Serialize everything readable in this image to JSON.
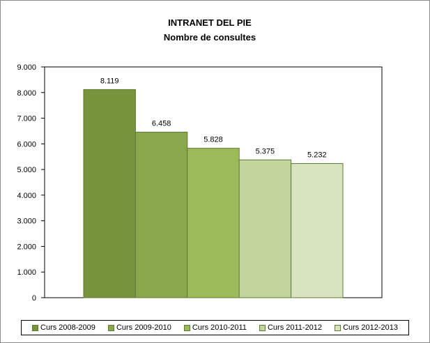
{
  "chart_data": {
    "type": "bar",
    "title": "INTRANET DEL PIE",
    "subtitle": "Nombre de consultes",
    "categories": [
      "Curs 2008-2009",
      "Curs 2009-2010",
      "Curs 2010-2011",
      "Curs 2011-2012",
      "Curs 2012-2013"
    ],
    "values": [
      8119,
      6458,
      5828,
      5375,
      5232
    ],
    "value_labels": [
      "8.119",
      "6.458",
      "5.828",
      "5.375",
      "5.232"
    ],
    "colors": [
      "#77933c",
      "#8aa74d",
      "#9bbb59",
      "#c2d69b",
      "#d7e4bd"
    ],
    "ylim": [
      0,
      9000
    ],
    "yticks": [
      0,
      1000,
      2000,
      3000,
      4000,
      5000,
      6000,
      7000,
      8000,
      9000
    ],
    "ytick_labels": [
      "0",
      "1.000",
      "2.000",
      "3.000",
      "4.000",
      "5.000",
      "6.000",
      "7.000",
      "8.000",
      "9.000"
    ],
    "xlabel": "",
    "ylabel": "",
    "grid": false,
    "legend_position": "bottom"
  }
}
